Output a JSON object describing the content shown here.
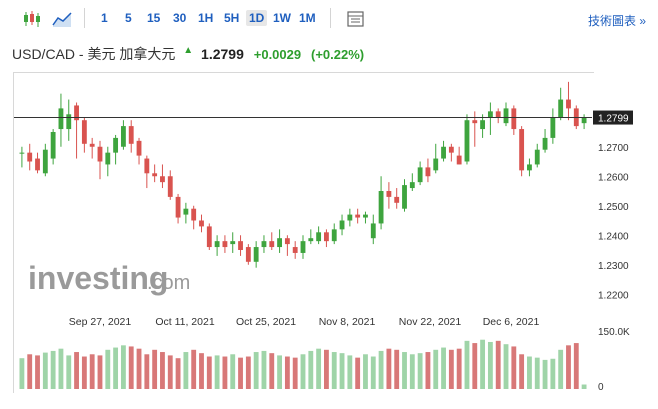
{
  "toolbar": {
    "chart_types": [
      {
        "name": "candlestick-chart-icon"
      },
      {
        "name": "area-chart-icon"
      }
    ],
    "intervals": [
      "1",
      "5",
      "15",
      "30",
      "1H",
      "5H",
      "1D",
      "1W",
      "1M"
    ],
    "active_interval": "1D",
    "technical_label": "技術圖表 »"
  },
  "header": {
    "symbol": "USD/CAD - 美元 加拿大元",
    "price": "1.2799",
    "change": "+0.0029",
    "change_pct": "(+0.22%)"
  },
  "watermark": {
    "brand": "investing",
    "suffix": ".com"
  },
  "colors": {
    "up": "#3ea43e",
    "down": "#d9534f",
    "vol_up": "#9fd4a8",
    "vol_down": "#d87878",
    "accent": "#1f5fbf"
  },
  "chart_data": {
    "type": "candlestick",
    "y_ticks": [
      "1.2700",
      "1.2600",
      "1.2500",
      "1.2400",
      "1.2300",
      "1.2200"
    ],
    "y_range": [
      1.215,
      1.295
    ],
    "x_ticks": [
      "Sep 27, 2021",
      "Oct 11, 2021",
      "Oct 25, 2021",
      "Nov 8, 2021",
      "Nov 22, 2021",
      "Dec 6, 2021"
    ],
    "current_price": 1.2799,
    "current_price_label": "1.2799",
    "volume_labels": [
      "150.0K",
      "0"
    ],
    "candles": [
      [
        1.268,
        1.268,
        1.27,
        1.263
      ],
      [
        1.268,
        1.265,
        1.271,
        1.262
      ],
      [
        1.266,
        1.262,
        1.268,
        1.261
      ],
      [
        1.261,
        1.269,
        1.271,
        1.26
      ],
      [
        1.266,
        1.275,
        1.276,
        1.264
      ],
      [
        1.276,
        1.283,
        1.288,
        1.27
      ],
      [
        1.276,
        1.281,
        1.286,
        1.272
      ],
      [
        1.284,
        1.279,
        1.285,
        1.266
      ],
      [
        1.279,
        1.271,
        1.28,
        1.268
      ],
      [
        1.271,
        1.27,
        1.273,
        1.266
      ],
      [
        1.27,
        1.265,
        1.272,
        1.259
      ],
      [
        1.264,
        1.268,
        1.27,
        1.26
      ],
      [
        1.268,
        1.273,
        1.274,
        1.264
      ],
      [
        1.27,
        1.277,
        1.279,
        1.269
      ],
      [
        1.277,
        1.271,
        1.279,
        1.268
      ],
      [
        1.272,
        1.267,
        1.273,
        1.264
      ],
      [
        1.266,
        1.261,
        1.267,
        1.256
      ],
      [
        1.261,
        1.26,
        1.264,
        1.258
      ],
      [
        1.26,
        1.258,
        1.264,
        1.256
      ],
      [
        1.26,
        1.253,
        1.262,
        1.252
      ],
      [
        1.253,
        1.246,
        1.254,
        1.244
      ],
      [
        1.247,
        1.249,
        1.251,
        1.244
      ],
      [
        1.249,
        1.245,
        1.25,
        1.242
      ],
      [
        1.245,
        1.243,
        1.247,
        1.241
      ],
      [
        1.243,
        1.236,
        1.244,
        1.235
      ],
      [
        1.236,
        1.238,
        1.24,
        1.233
      ],
      [
        1.238,
        1.236,
        1.24,
        1.234
      ],
      [
        1.237,
        1.238,
        1.241,
        1.234
      ],
      [
        1.238,
        1.235,
        1.24,
        1.233
      ],
      [
        1.236,
        1.231,
        1.237,
        1.23
      ],
      [
        1.231,
        1.236,
        1.238,
        1.229
      ],
      [
        1.236,
        1.238,
        1.24,
        1.234
      ],
      [
        1.238,
        1.236,
        1.241,
        1.235
      ],
      [
        1.236,
        1.239,
        1.242,
        1.234
      ],
      [
        1.239,
        1.237,
        1.24,
        1.233
      ],
      [
        1.236,
        1.234,
        1.238,
        1.232
      ],
      [
        1.234,
        1.238,
        1.24,
        1.232
      ],
      [
        1.238,
        1.239,
        1.242,
        1.237
      ],
      [
        1.238,
        1.241,
        1.243,
        1.237
      ],
      [
        1.241,
        1.238,
        1.242,
        1.236
      ],
      [
        1.238,
        1.242,
        1.244,
        1.237
      ],
      [
        1.242,
        1.245,
        1.247,
        1.24
      ],
      [
        1.245,
        1.247,
        1.249,
        1.243
      ],
      [
        1.247,
        1.246,
        1.249,
        1.244
      ],
      [
        1.246,
        1.247,
        1.248,
        1.244
      ],
      [
        1.239,
        1.244,
        1.247,
        1.237
      ],
      [
        1.244,
        1.255,
        1.26,
        1.242
      ],
      [
        1.255,
        1.253,
        1.258,
        1.249
      ],
      [
        1.253,
        1.251,
        1.256,
        1.249
      ],
      [
        1.249,
        1.257,
        1.259,
        1.248
      ],
      [
        1.256,
        1.258,
        1.261,
        1.255
      ],
      [
        1.258,
        1.263,
        1.265,
        1.257
      ],
      [
        1.263,
        1.26,
        1.266,
        1.258
      ],
      [
        1.262,
        1.266,
        1.271,
        1.261
      ],
      [
        1.266,
        1.27,
        1.272,
        1.265
      ],
      [
        1.27,
        1.268,
        1.271,
        1.265
      ],
      [
        1.267,
        1.264,
        1.27,
        1.264
      ],
      [
        1.265,
        1.279,
        1.281,
        1.264
      ],
      [
        1.279,
        1.278,
        1.282,
        1.27
      ],
      [
        1.276,
        1.279,
        1.281,
        1.273
      ],
      [
        1.28,
        1.282,
        1.285,
        1.274
      ],
      [
        1.282,
        1.28,
        1.283,
        1.278
      ],
      [
        1.278,
        1.283,
        1.285,
        1.277
      ],
      [
        1.283,
        1.276,
        1.284,
        1.274
      ],
      [
        1.276,
        1.262,
        1.277,
        1.26
      ],
      [
        1.262,
        1.264,
        1.266,
        1.26
      ],
      [
        1.264,
        1.269,
        1.271,
        1.263
      ],
      [
        1.269,
        1.273,
        1.276,
        1.268
      ],
      [
        1.273,
        1.28,
        1.283,
        1.271
      ],
      [
        1.28,
        1.286,
        1.29,
        1.279
      ],
      [
        1.286,
        1.283,
        1.292,
        1.279
      ],
      [
        1.283,
        1.277,
        1.284,
        1.276
      ],
      [
        1.278,
        1.2799,
        1.281,
        1.276
      ]
    ],
    "volumes": [
      0.55,
      0.62,
      0.6,
      0.65,
      0.68,
      0.72,
      0.6,
      0.66,
      0.58,
      0.62,
      0.6,
      0.7,
      0.74,
      0.78,
      0.76,
      0.72,
      0.62,
      0.7,
      0.66,
      0.6,
      0.55,
      0.66,
      0.7,
      0.64,
      0.58,
      0.6,
      0.58,
      0.62,
      0.56,
      0.58,
      0.66,
      0.68,
      0.64,
      0.6,
      0.58,
      0.56,
      0.62,
      0.68,
      0.72,
      0.7,
      0.66,
      0.64,
      0.6,
      0.56,
      0.62,
      0.58,
      0.68,
      0.72,
      0.7,
      0.66,
      0.62,
      0.64,
      0.66,
      0.7,
      0.74,
      0.7,
      0.72,
      0.86,
      0.82,
      0.88,
      0.84,
      0.86,
      0.8,
      0.76,
      0.62,
      0.58,
      0.56,
      0.52,
      0.54,
      0.7,
      0.78,
      0.82,
      0.08
    ]
  }
}
